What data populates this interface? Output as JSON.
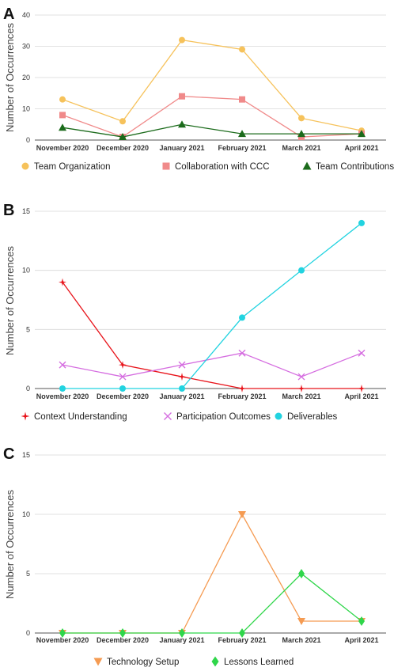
{
  "chart_data": [
    {
      "type": "line",
      "panel_label": "A",
      "categories": [
        "November 2020",
        "December 2020",
        "January 2021",
        "February 2021",
        "March 2021",
        "April 2021"
      ],
      "ylabel": "Number of Occurrences",
      "ylim": [
        0,
        40
      ],
      "yticks": [
        0,
        10,
        20,
        30,
        40
      ],
      "grid": true,
      "legend": "bottom",
      "series": [
        {
          "name": "Team Organization",
          "values": [
            13,
            6,
            32,
            29,
            7,
            3
          ],
          "color": "#f6c25b",
          "marker": "circle"
        },
        {
          "name": "Collaboration with CCC",
          "values": [
            8,
            1,
            14,
            13,
            1,
            2
          ],
          "color": "#f08a8a",
          "marker": "square"
        },
        {
          "name": "Team Contributions",
          "values": [
            4,
            1,
            5,
            2,
            2,
            2
          ],
          "color": "#1b6b1b",
          "marker": "triangle-up"
        }
      ]
    },
    {
      "type": "line",
      "panel_label": "B",
      "categories": [
        "November 2020",
        "December 2020",
        "January 2021",
        "February 2021",
        "March 2021",
        "April 2021"
      ],
      "ylabel": "Number of Occurrences",
      "ylim": [
        0,
        15
      ],
      "yticks": [
        0,
        5,
        10,
        15
      ],
      "grid": true,
      "legend": "bottom",
      "series": [
        {
          "name": "Context Understanding",
          "values": [
            9,
            2,
            1,
            0,
            0,
            0
          ],
          "color": "#e8141b",
          "marker": "star"
        },
        {
          "name": "Participation Outcomes",
          "values": [
            2,
            1,
            2,
            3,
            1,
            3
          ],
          "color": "#d56de0",
          "marker": "x"
        },
        {
          "name": "Deliverables",
          "values": [
            0,
            0,
            0,
            6,
            10,
            14
          ],
          "color": "#22d3e0",
          "marker": "circle"
        }
      ]
    },
    {
      "type": "line",
      "panel_label": "C",
      "categories": [
        "November 2020",
        "December 2020",
        "January 2021",
        "February 2021",
        "March 2021",
        "April 2021"
      ],
      "ylabel": "Number of Occurrences",
      "ylim": [
        0,
        15
      ],
      "yticks": [
        0,
        5,
        10,
        15
      ],
      "grid": true,
      "legend": "bottom",
      "series": [
        {
          "name": "Technology Setup",
          "values": [
            0,
            0,
            0,
            10,
            1,
            1
          ],
          "color": "#f59b52",
          "marker": "triangle-down"
        },
        {
          "name": "Lessons Learned",
          "values": [
            0,
            0,
            0,
            0,
            5,
            1
          ],
          "color": "#2fd64a",
          "marker": "diamond"
        }
      ]
    }
  ]
}
